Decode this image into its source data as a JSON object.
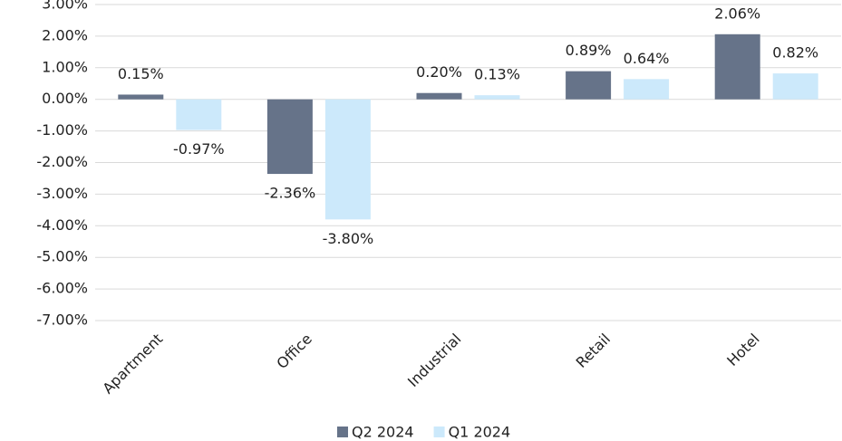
{
  "chart_data": {
    "type": "bar",
    "categories": [
      "Apartment",
      "Office",
      "Industrial",
      "Retail",
      "Hotel"
    ],
    "series": [
      {
        "name": "Q2 2024",
        "color": "#667389",
        "values": [
          0.15,
          -2.36,
          0.2,
          0.89,
          2.06
        ],
        "value_labels": [
          "0.15%",
          "-2.36%",
          "0.20%",
          "0.89%",
          "2.06%"
        ]
      },
      {
        "name": "Q1 2024",
        "color": "#cce9fb",
        "values": [
          -0.97,
          -3.8,
          0.13,
          0.64,
          0.82
        ],
        "value_labels": [
          "-0.97%",
          "-3.80%",
          "0.13%",
          "0.64%",
          "0.82%"
        ]
      }
    ],
    "ylim": [
      -7,
      3
    ],
    "yticks": [
      {
        "value": 3,
        "label": "3.00%"
      },
      {
        "value": 2,
        "label": "2.00%"
      },
      {
        "value": 1,
        "label": "1.00%"
      },
      {
        "value": 0,
        "label": "0.00%"
      },
      {
        "value": -1,
        "label": "-1.00%"
      },
      {
        "value": -2,
        "label": "-2.00%"
      },
      {
        "value": -3,
        "label": "-3.00%"
      },
      {
        "value": -4,
        "label": "-4.00%"
      },
      {
        "value": -5,
        "label": "-5.00%"
      },
      {
        "value": -6,
        "label": "-6.00%"
      },
      {
        "value": -7,
        "label": "-7.00%"
      }
    ],
    "grid": true,
    "legend": "bottom"
  }
}
